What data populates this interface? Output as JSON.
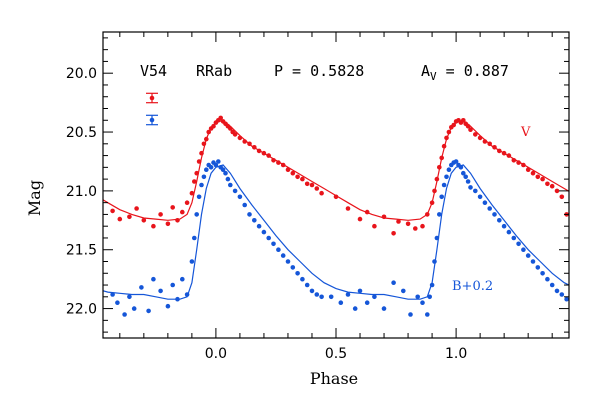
{
  "chart_data": {
    "type": "scatter",
    "xlabel": "Phase",
    "ylabel": "Mag",
    "xlim": [
      -0.47,
      1.47
    ],
    "ylim": [
      22.25,
      19.65
    ],
    "y_inverted": true,
    "grid": false,
    "x_ticks": [
      0.0,
      0.5,
      1.0
    ],
    "x_tick_labels": [
      "0.0",
      "0.5",
      "1.0"
    ],
    "y_ticks": [
      20.0,
      20.5,
      21.0,
      21.5,
      22.0
    ],
    "y_tick_labels": [
      "20.0",
      "20.5",
      "21.0",
      "21.5",
      "22.0"
    ],
    "info": {
      "star": "V54",
      "type": "RRab",
      "period_label": "P = 0.5828",
      "amp_prefix": "A",
      "amp_sub": "V",
      "amp_value": " = 0.887"
    },
    "series": [
      {
        "name": "V",
        "color": "#e8141b",
        "template": [
          [
            0.0,
            20.42
          ],
          [
            0.03,
            20.4
          ],
          [
            0.06,
            20.45
          ],
          [
            0.1,
            20.53
          ],
          [
            0.15,
            20.62
          ],
          [
            0.2,
            20.68
          ],
          [
            0.25,
            20.74
          ],
          [
            0.3,
            20.8
          ],
          [
            0.35,
            20.86
          ],
          [
            0.4,
            20.92
          ],
          [
            0.45,
            20.98
          ],
          [
            0.5,
            21.04
          ],
          [
            0.55,
            21.1
          ],
          [
            0.6,
            21.16
          ],
          [
            0.65,
            21.2
          ],
          [
            0.7,
            21.23
          ],
          [
            0.75,
            21.24
          ],
          [
            0.8,
            21.25
          ],
          [
            0.85,
            21.24
          ],
          [
            0.88,
            21.2
          ],
          [
            0.9,
            21.1
          ],
          [
            0.92,
            20.92
          ],
          [
            0.94,
            20.72
          ],
          [
            0.96,
            20.56
          ],
          [
            0.98,
            20.46
          ],
          [
            1.0,
            20.42
          ]
        ],
        "points": [
          [
            -0.43,
            21.17
          ],
          [
            -0.4,
            21.24
          ],
          [
            -0.36,
            21.22
          ],
          [
            -0.33,
            21.15
          ],
          [
            -0.3,
            21.25
          ],
          [
            -0.26,
            21.3
          ],
          [
            -0.23,
            21.2
          ],
          [
            -0.2,
            21.28
          ],
          [
            -0.18,
            21.14
          ],
          [
            -0.16,
            21.25
          ],
          [
            -0.14,
            21.18
          ],
          [
            -0.12,
            21.1
          ],
          [
            -0.1,
            21.02
          ],
          [
            -0.09,
            20.92
          ],
          [
            -0.08,
            20.85
          ],
          [
            -0.07,
            20.75
          ],
          [
            -0.06,
            20.68
          ],
          [
            -0.05,
            20.6
          ],
          [
            -0.04,
            20.56
          ],
          [
            -0.03,
            20.5
          ],
          [
            -0.02,
            20.47
          ],
          [
            -0.01,
            20.45
          ],
          [
            0.0,
            20.42
          ],
          [
            0.01,
            20.4
          ],
          [
            0.02,
            20.38
          ],
          [
            0.03,
            20.41
          ],
          [
            0.04,
            20.43
          ],
          [
            0.05,
            20.45
          ],
          [
            0.06,
            20.47
          ],
          [
            0.07,
            20.5
          ],
          [
            0.08,
            20.52
          ],
          [
            0.1,
            20.55
          ],
          [
            0.12,
            20.58
          ],
          [
            0.14,
            20.6
          ],
          [
            0.16,
            20.63
          ],
          [
            0.18,
            20.66
          ],
          [
            0.2,
            20.68
          ],
          [
            0.22,
            20.7
          ],
          [
            0.24,
            20.74
          ],
          [
            0.26,
            20.76
          ],
          [
            0.28,
            20.78
          ],
          [
            0.3,
            20.82
          ],
          [
            0.32,
            20.85
          ],
          [
            0.34,
            20.88
          ],
          [
            0.36,
            20.9
          ],
          [
            0.38,
            20.94
          ],
          [
            0.4,
            20.95
          ],
          [
            0.42,
            20.98
          ],
          [
            0.44,
            21.02
          ],
          [
            0.5,
            21.05
          ],
          [
            0.55,
            21.15
          ],
          [
            0.6,
            21.24
          ],
          [
            0.63,
            21.18
          ],
          [
            0.66,
            21.3
          ],
          [
            0.7,
            21.22
          ],
          [
            0.74,
            21.36
          ],
          [
            0.76,
            21.26
          ],
          [
            0.8,
            21.28
          ],
          [
            0.83,
            21.32
          ],
          [
            0.86,
            21.3
          ],
          [
            0.88,
            21.2
          ],
          [
            0.9,
            21.1
          ],
          [
            0.91,
            21.0
          ],
          [
            0.92,
            20.9
          ],
          [
            0.93,
            20.8
          ],
          [
            0.94,
            20.72
          ],
          [
            0.95,
            20.62
          ],
          [
            0.96,
            20.55
          ],
          [
            0.97,
            20.5
          ],
          [
            0.98,
            20.46
          ],
          [
            0.99,
            20.44
          ],
          [
            1.0,
            20.41
          ],
          [
            1.01,
            20.4
          ],
          [
            1.02,
            20.42
          ],
          [
            1.03,
            20.4
          ],
          [
            1.04,
            20.43
          ],
          [
            1.05,
            20.45
          ],
          [
            1.06,
            20.48
          ],
          [
            1.08,
            20.52
          ],
          [
            1.1,
            20.55
          ],
          [
            1.12,
            20.58
          ],
          [
            1.14,
            20.6
          ],
          [
            1.16,
            20.63
          ],
          [
            1.18,
            20.66
          ],
          [
            1.2,
            20.68
          ],
          [
            1.22,
            20.7
          ],
          [
            1.24,
            20.74
          ],
          [
            1.26,
            20.76
          ],
          [
            1.28,
            20.78
          ],
          [
            1.3,
            20.82
          ],
          [
            1.32,
            20.85
          ],
          [
            1.34,
            20.88
          ],
          [
            1.36,
            20.9
          ],
          [
            1.38,
            20.94
          ],
          [
            1.4,
            20.96
          ],
          [
            1.42,
            21.0
          ],
          [
            1.44,
            21.05
          ],
          [
            1.46,
            21.2
          ]
        ],
        "label": "V",
        "error_bar": [
          0.04
        ]
      },
      {
        "name": "B+0.2",
        "color": "#1556d8",
        "template": [
          [
            0.0,
            20.8
          ],
          [
            0.03,
            20.78
          ],
          [
            0.06,
            20.85
          ],
          [
            0.1,
            20.98
          ],
          [
            0.15,
            21.12
          ],
          [
            0.2,
            21.25
          ],
          [
            0.25,
            21.38
          ],
          [
            0.3,
            21.5
          ],
          [
            0.35,
            21.6
          ],
          [
            0.4,
            21.7
          ],
          [
            0.45,
            21.78
          ],
          [
            0.5,
            21.83
          ],
          [
            0.55,
            21.86
          ],
          [
            0.6,
            21.87
          ],
          [
            0.65,
            21.88
          ],
          [
            0.7,
            21.88
          ],
          [
            0.75,
            21.9
          ],
          [
            0.8,
            21.92
          ],
          [
            0.85,
            21.92
          ],
          [
            0.88,
            21.9
          ],
          [
            0.9,
            21.78
          ],
          [
            0.92,
            21.5
          ],
          [
            0.94,
            21.2
          ],
          [
            0.96,
            20.98
          ],
          [
            0.98,
            20.85
          ],
          [
            1.0,
            20.8
          ]
        ],
        "points": [
          [
            -0.43,
            21.88
          ],
          [
            -0.41,
            21.95
          ],
          [
            -0.38,
            22.05
          ],
          [
            -0.36,
            21.9
          ],
          [
            -0.34,
            22.0
          ],
          [
            -0.31,
            21.82
          ],
          [
            -0.28,
            22.02
          ],
          [
            -0.26,
            21.75
          ],
          [
            -0.23,
            21.85
          ],
          [
            -0.2,
            21.98
          ],
          [
            -0.18,
            21.8
          ],
          [
            -0.16,
            21.92
          ],
          [
            -0.14,
            21.75
          ],
          [
            -0.12,
            21.88
          ],
          [
            -0.1,
            21.6
          ],
          [
            -0.09,
            21.4
          ],
          [
            -0.08,
            21.2
          ],
          [
            -0.07,
            21.05
          ],
          [
            -0.06,
            20.95
          ],
          [
            -0.05,
            20.88
          ],
          [
            -0.04,
            20.82
          ],
          [
            -0.03,
            20.78
          ],
          [
            -0.02,
            20.8
          ],
          [
            -0.01,
            20.76
          ],
          [
            0.0,
            20.78
          ],
          [
            0.01,
            20.75
          ],
          [
            0.02,
            20.8
          ],
          [
            0.03,
            20.82
          ],
          [
            0.04,
            20.85
          ],
          [
            0.05,
            20.9
          ],
          [
            0.06,
            20.95
          ],
          [
            0.08,
            21.0
          ],
          [
            0.1,
            21.05
          ],
          [
            0.12,
            21.12
          ],
          [
            0.14,
            21.2
          ],
          [
            0.16,
            21.25
          ],
          [
            0.18,
            21.3
          ],
          [
            0.2,
            21.35
          ],
          [
            0.22,
            21.4
          ],
          [
            0.24,
            21.45
          ],
          [
            0.26,
            21.5
          ],
          [
            0.28,
            21.55
          ],
          [
            0.3,
            21.6
          ],
          [
            0.32,
            21.65
          ],
          [
            0.34,
            21.7
          ],
          [
            0.36,
            21.75
          ],
          [
            0.38,
            21.8
          ],
          [
            0.4,
            21.85
          ],
          [
            0.42,
            21.88
          ],
          [
            0.44,
            21.9
          ],
          [
            0.48,
            21.9
          ],
          [
            0.52,
            21.95
          ],
          [
            0.55,
            21.88
          ],
          [
            0.58,
            22.0
          ],
          [
            0.6,
            21.85
          ],
          [
            0.63,
            21.95
          ],
          [
            0.66,
            21.9
          ],
          [
            0.7,
            22.0
          ],
          [
            0.74,
            21.78
          ],
          [
            0.78,
            21.85
          ],
          [
            0.81,
            22.05
          ],
          [
            0.84,
            21.9
          ],
          [
            0.86,
            21.95
          ],
          [
            0.88,
            22.05
          ],
          [
            0.89,
            21.9
          ],
          [
            0.9,
            21.8
          ],
          [
            0.91,
            21.6
          ],
          [
            0.92,
            21.4
          ],
          [
            0.93,
            21.2
          ],
          [
            0.94,
            21.05
          ],
          [
            0.95,
            20.95
          ],
          [
            0.96,
            20.88
          ],
          [
            0.97,
            20.82
          ],
          [
            0.98,
            20.78
          ],
          [
            0.99,
            20.76
          ],
          [
            1.0,
            20.75
          ],
          [
            1.01,
            20.78
          ],
          [
            1.02,
            20.8
          ],
          [
            1.03,
            20.85
          ],
          [
            1.04,
            20.88
          ],
          [
            1.05,
            20.92
          ],
          [
            1.06,
            20.97
          ],
          [
            1.08,
            21.0
          ],
          [
            1.1,
            21.05
          ],
          [
            1.12,
            21.1
          ],
          [
            1.14,
            21.15
          ],
          [
            1.16,
            21.2
          ],
          [
            1.18,
            21.25
          ],
          [
            1.2,
            21.3
          ],
          [
            1.22,
            21.35
          ],
          [
            1.24,
            21.4
          ],
          [
            1.26,
            21.45
          ],
          [
            1.28,
            21.5
          ],
          [
            1.3,
            21.55
          ],
          [
            1.32,
            21.6
          ],
          [
            1.34,
            21.65
          ],
          [
            1.36,
            21.7
          ],
          [
            1.38,
            21.75
          ],
          [
            1.4,
            21.8
          ],
          [
            1.42,
            21.85
          ],
          [
            1.44,
            21.88
          ],
          [
            1.46,
            21.92
          ]
        ],
        "label": "B+0.2",
        "error_bar": [
          0.04
        ]
      }
    ]
  }
}
